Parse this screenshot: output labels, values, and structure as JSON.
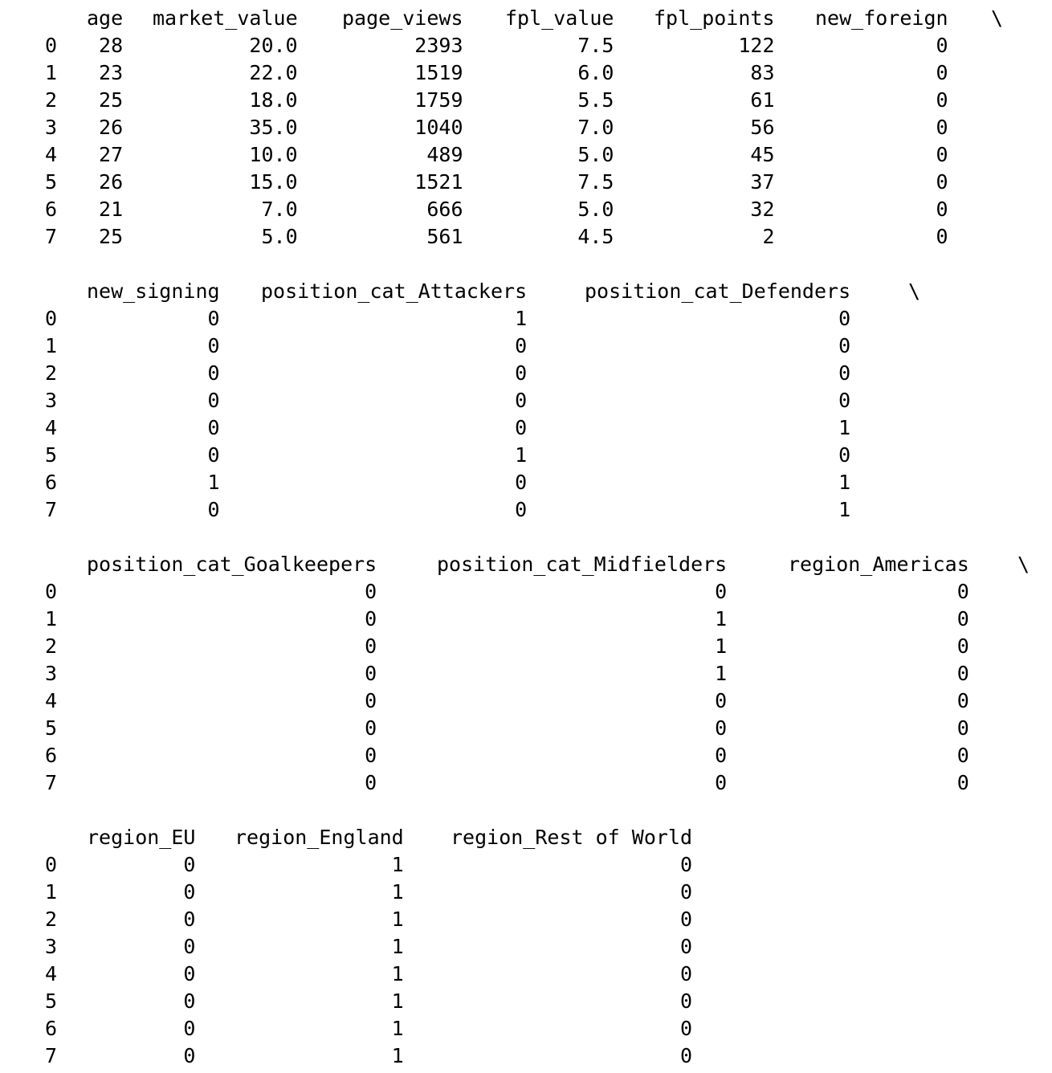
{
  "blocks": [
    {
      "columns": [
        "age",
        "market_value",
        "page_views",
        "fpl_value",
        "fpl_points",
        "new_foreign"
      ],
      "continued": true,
      "index": [
        "0",
        "1",
        "2",
        "3",
        "4",
        "5",
        "6",
        "7"
      ],
      "rows": [
        [
          "28",
          "20.0",
          "2393",
          "7.5",
          "122",
          "0"
        ],
        [
          "23",
          "22.0",
          "1519",
          "6.0",
          "83",
          "0"
        ],
        [
          "25",
          "18.0",
          "1759",
          "5.5",
          "61",
          "0"
        ],
        [
          "26",
          "35.0",
          "1040",
          "7.0",
          "56",
          "0"
        ],
        [
          "27",
          "10.0",
          "489",
          "5.0",
          "45",
          "0"
        ],
        [
          "26",
          "15.0",
          "1521",
          "7.5",
          "37",
          "0"
        ],
        [
          "21",
          "7.0",
          "666",
          "5.0",
          "32",
          "0"
        ],
        [
          "25",
          "5.0",
          "561",
          "4.5",
          "2",
          "0"
        ]
      ]
    },
    {
      "columns": [
        "new_signing",
        "position_cat_Attackers",
        "position_cat_Defenders"
      ],
      "continued": true,
      "index": [
        "0",
        "1",
        "2",
        "3",
        "4",
        "5",
        "6",
        "7"
      ],
      "rows": [
        [
          "0",
          "1",
          "0"
        ],
        [
          "0",
          "0",
          "0"
        ],
        [
          "0",
          "0",
          "0"
        ],
        [
          "0",
          "0",
          "0"
        ],
        [
          "0",
          "0",
          "1"
        ],
        [
          "0",
          "1",
          "0"
        ],
        [
          "1",
          "0",
          "1"
        ],
        [
          "0",
          "0",
          "1"
        ]
      ]
    },
    {
      "columns": [
        "position_cat_Goalkeepers",
        "position_cat_Midfielders",
        "region_Americas"
      ],
      "continued": true,
      "index": [
        "0",
        "1",
        "2",
        "3",
        "4",
        "5",
        "6",
        "7"
      ],
      "rows": [
        [
          "0",
          "0",
          "0"
        ],
        [
          "0",
          "1",
          "0"
        ],
        [
          "0",
          "1",
          "0"
        ],
        [
          "0",
          "1",
          "0"
        ],
        [
          "0",
          "0",
          "0"
        ],
        [
          "0",
          "0",
          "0"
        ],
        [
          "0",
          "0",
          "0"
        ],
        [
          "0",
          "0",
          "0"
        ]
      ]
    },
    {
      "columns": [
        "region_EU",
        "region_England",
        "region_Rest of World"
      ],
      "continued": false,
      "index": [
        "0",
        "1",
        "2",
        "3",
        "4",
        "5",
        "6",
        "7"
      ],
      "rows": [
        [
          "0",
          "1",
          "0"
        ],
        [
          "0",
          "1",
          "0"
        ],
        [
          "0",
          "1",
          "0"
        ],
        [
          "0",
          "1",
          "0"
        ],
        [
          "0",
          "1",
          "0"
        ],
        [
          "0",
          "1",
          "0"
        ],
        [
          "0",
          "1",
          "0"
        ],
        [
          "0",
          "1",
          "0"
        ]
      ]
    }
  ],
  "continuation_mark": "\\"
}
